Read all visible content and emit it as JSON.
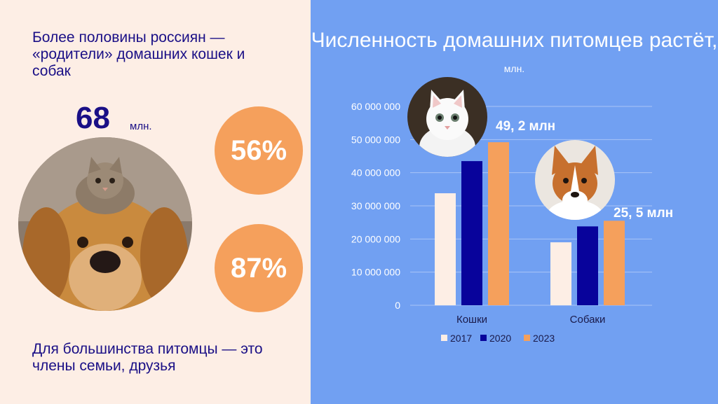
{
  "left": {
    "intro": "Более половины россиян — «родители» домашних кошек и собак",
    "stat_value": "68",
    "stat_unit": "млн.",
    "pct_top": "56%",
    "pct_bottom": "87%",
    "outro": "Для большинства питомцы — это члены семьи, друзья"
  },
  "title_main": "Численность домашних питомцев растёт,",
  "title_unit": "млн.",
  "colors": {
    "left_bg": "#fdeee5",
    "right_bg": "#71a0f2",
    "accent": "#f5a05c",
    "navy": "#1a0f86"
  },
  "images": {
    "main": "dog-with-kitten-photo",
    "cat": "white-kitten-photo",
    "dog": "corgi-photo"
  },
  "chart_data": {
    "type": "bar",
    "categories": [
      "Кошки",
      "Собаки"
    ],
    "series": [
      {
        "name": "2017",
        "values": [
          33800000,
          19000000
        ],
        "color": "#fdeee5"
      },
      {
        "name": "2020",
        "values": [
          43500000,
          23800000
        ],
        "color": "#08039b"
      },
      {
        "name": "2023",
        "values": [
          49200000,
          25500000
        ],
        "color": "#f5a05c"
      }
    ],
    "ylim": [
      0,
      60000000
    ],
    "yticks": [
      "0",
      "10 000 000",
      "20 000 000",
      "30 000 000",
      "40 000 000",
      "50 000 000",
      "60 000 000"
    ],
    "annotations": [
      "49, 2 млн",
      "25, 5 млн"
    ],
    "legend": "bottom",
    "grid": true
  }
}
